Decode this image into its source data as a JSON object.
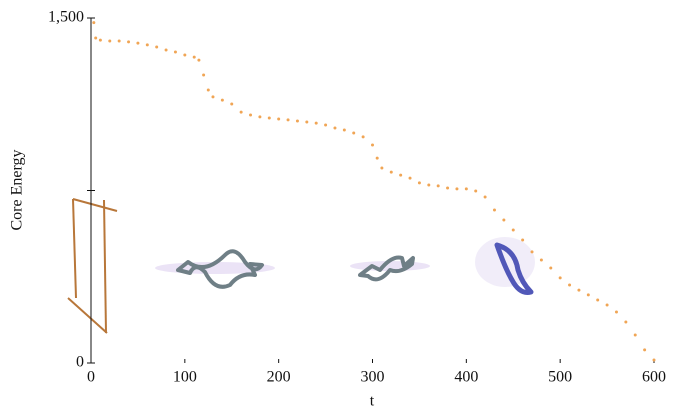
{
  "chart_data": {
    "type": "scatter",
    "xlabel": "t",
    "ylabel": "Core Energy",
    "x": [
      3,
      5,
      10,
      20,
      30,
      40,
      50,
      60,
      70,
      80,
      90,
      100,
      110,
      115,
      120,
      125,
      130,
      140,
      150,
      160,
      170,
      180,
      190,
      200,
      210,
      220,
      230,
      240,
      250,
      260,
      270,
      280,
      290,
      300,
      305,
      310,
      320,
      330,
      340,
      350,
      360,
      370,
      380,
      390,
      400,
      410,
      420,
      430,
      440,
      450,
      460,
      470,
      480,
      490,
      500,
      510,
      520,
      530,
      540,
      550,
      560,
      570,
      580,
      590,
      600
    ],
    "values": [
      1480,
      1413,
      1404,
      1400,
      1400,
      1396,
      1391,
      1383,
      1374,
      1361,
      1352,
      1339,
      1330,
      1317,
      1252,
      1187,
      1157,
      1143,
      1126,
      1091,
      1078,
      1070,
      1065,
      1061,
      1057,
      1052,
      1048,
      1043,
      1035,
      1022,
      1013,
      1000,
      983,
      948,
      891,
      848,
      830,
      817,
      804,
      783,
      774,
      770,
      761,
      757,
      757,
      748,
      722,
      665,
      622,
      578,
      535,
      483,
      448,
      413,
      370,
      339,
      317,
      296,
      274,
      252,
      222,
      178,
      122,
      57,
      13
    ],
    "color": "#f0a555",
    "xlim": [
      0,
      600
    ],
    "xticks": [
      0,
      100,
      200,
      300,
      400,
      500,
      600
    ],
    "ylim": [
      0,
      1500
    ],
    "yticks": [
      0,
      {
        "value": 1500,
        "label": "1,500"
      }
    ],
    "yminorticks": [
      750
    ]
  }
}
